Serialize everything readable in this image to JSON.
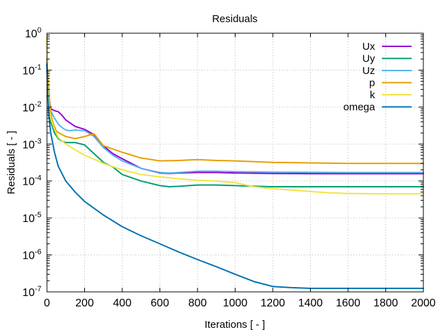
{
  "chart_data": {
    "type": "line",
    "title": "Residuals",
    "xlabel": "Iterations [ - ]",
    "ylabel": "Residuals [ - ]",
    "xlim": [
      0,
      2000
    ],
    "ylim": [
      1e-07,
      1
    ],
    "yscale": "log",
    "grid": true,
    "legend_position": "top-right",
    "x_ticks": [
      0,
      200,
      400,
      600,
      800,
      1000,
      1200,
      1400,
      1600,
      1800,
      2000
    ],
    "y_ticks": [
      {
        "base": "10",
        "exp": "0",
        "value": 1
      },
      {
        "base": "10",
        "exp": "-1",
        "value": 0.1
      },
      {
        "base": "10",
        "exp": "-2",
        "value": 0.01
      },
      {
        "base": "10",
        "exp": "-3",
        "value": 0.001
      },
      {
        "base": "10",
        "exp": "-4",
        "value": 0.0001
      },
      {
        "base": "10",
        "exp": "-5",
        "value": 1e-05
      },
      {
        "base": "10",
        "exp": "-6",
        "value": 1e-06
      },
      {
        "base": "10",
        "exp": "-7",
        "value": 1e-07
      }
    ],
    "series": [
      {
        "name": "Ux",
        "color": "#9400d3",
        "x": [
          0,
          5,
          10,
          20,
          40,
          60,
          80,
          100,
          150,
          200,
          250,
          300,
          350,
          400,
          500,
          600,
          650,
          700,
          800,
          900,
          1000,
          1200,
          1400,
          1600,
          1800,
          2000
        ],
        "y": [
          0.1,
          0.06,
          0.02,
          0.009,
          0.008,
          0.0075,
          0.006,
          0.0045,
          0.003,
          0.0025,
          0.0018,
          0.0009,
          0.00055,
          0.0004,
          0.00022,
          0.000165,
          0.00016,
          0.000165,
          0.00017,
          0.00017,
          0.000165,
          0.00016,
          0.000158,
          0.000158,
          0.000158,
          0.000158
        ]
      },
      {
        "name": "Uy",
        "color": "#009e73",
        "x": [
          0,
          5,
          10,
          20,
          40,
          60,
          80,
          100,
          150,
          200,
          250,
          300,
          350,
          400,
          500,
          600,
          650,
          700,
          800,
          900,
          1000,
          1200,
          1400,
          1600,
          1800,
          2000
        ],
        "y": [
          0.1,
          0.05,
          0.01,
          0.004,
          0.002,
          0.0014,
          0.0012,
          0.0011,
          0.0011,
          0.00095,
          0.00055,
          0.00032,
          0.00024,
          0.00015,
          0.0001,
          7.5e-05,
          7e-05,
          7.2e-05,
          7.8e-05,
          7.8e-05,
          7.5e-05,
          7e-05,
          7e-05,
          7e-05,
          7e-05,
          7e-05
        ]
      },
      {
        "name": "Uz",
        "color": "#56b4e9",
        "x": [
          0,
          5,
          10,
          20,
          40,
          60,
          80,
          100,
          120,
          150,
          200,
          250,
          300,
          350,
          400,
          500,
          600,
          650,
          700,
          800,
          900,
          1000,
          1200,
          1400,
          1600,
          1800,
          2000
        ],
        "y": [
          0.1,
          0.06,
          0.02,
          0.008,
          0.005,
          0.0035,
          0.0028,
          0.0024,
          0.0023,
          0.0024,
          0.0023,
          0.0016,
          0.0008,
          0.0005,
          0.00035,
          0.00022,
          0.00017,
          0.000165,
          0.00017,
          0.000185,
          0.000185,
          0.00018,
          0.000175,
          0.000172,
          0.00017,
          0.00017,
          0.00017
        ]
      },
      {
        "name": "p",
        "color": "#e69f00",
        "x": [
          0,
          3,
          8,
          10,
          15,
          20,
          30,
          50,
          80,
          100,
          150,
          200,
          250,
          300,
          400,
          500,
          600,
          700,
          800,
          900,
          1000,
          1200,
          1400,
          1600,
          1800,
          2000
        ],
        "y": [
          0.2,
          0.09,
          0.05,
          0.035,
          0.012,
          0.007,
          0.004,
          0.0022,
          0.0018,
          0.0016,
          0.0014,
          0.0016,
          0.0019,
          0.0009,
          0.0006,
          0.00042,
          0.00035,
          0.00036,
          0.00038,
          0.00036,
          0.00035,
          0.00032,
          0.00031,
          0.0003,
          0.0003,
          0.0003
        ]
      },
      {
        "name": "k",
        "color": "#f0e442",
        "x": [
          0,
          3,
          6,
          10,
          20,
          40,
          60,
          100,
          150,
          200,
          300,
          400,
          500,
          600,
          700,
          800,
          900,
          1000,
          1100,
          1200,
          1300,
          1400,
          1500,
          1600,
          1800,
          2000
        ],
        "y": [
          0.8,
          0.1,
          0.03,
          0.01,
          0.005,
          0.0025,
          0.0015,
          0.001,
          0.0007,
          0.0005,
          0.0003,
          0.0002,
          0.00015,
          0.00013,
          0.000115,
          0.000105,
          0.0001,
          9e-05,
          7e-05,
          6.2e-05,
          5.7e-05,
          5.2e-05,
          4.8e-05,
          4.6e-05,
          4.5e-05,
          4.5e-05
        ]
      },
      {
        "name": "omega",
        "color": "#0072b2",
        "x": [
          0,
          3,
          10,
          20,
          40,
          60,
          100,
          150,
          200,
          300,
          400,
          500,
          600,
          700,
          800,
          900,
          1000,
          1100,
          1200,
          1300,
          1400,
          1600,
          1800,
          2000
        ],
        "y": [
          0.15,
          0.03,
          0.006,
          0.002,
          0.0006,
          0.00025,
          0.0001,
          5e-05,
          2.8e-05,
          1.2e-05,
          5.8e-06,
          3.3e-06,
          2e-06,
          1.2e-06,
          7.5e-07,
          4.8e-07,
          3e-07,
          1.9e-07,
          1.4e-07,
          1.3e-07,
          1.25e-07,
          1.25e-07,
          1.25e-07,
          1.25e-07
        ]
      }
    ]
  }
}
